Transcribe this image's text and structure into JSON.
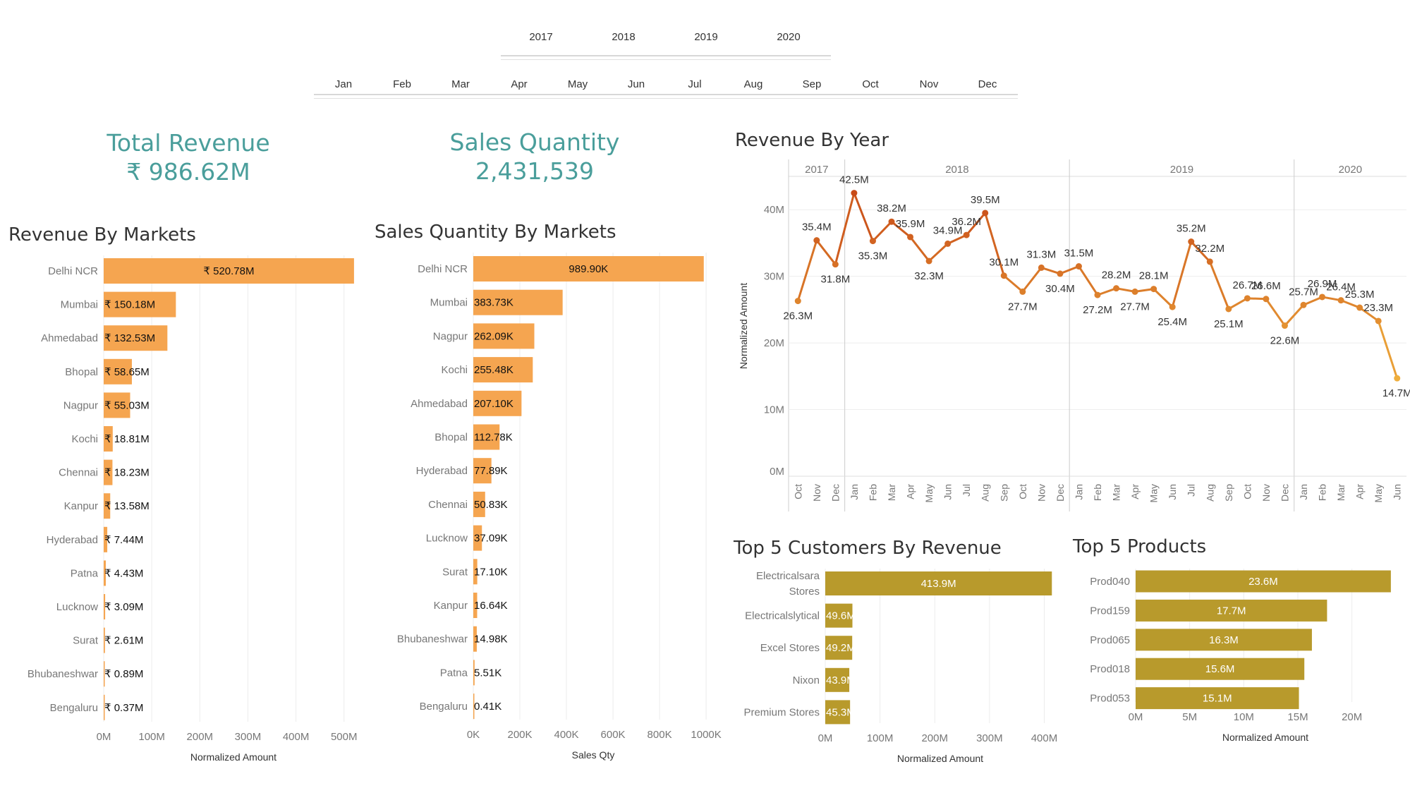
{
  "filters": {
    "years": [
      "2017",
      "2018",
      "2019",
      "2020"
    ],
    "months": [
      "Jan",
      "Feb",
      "Mar",
      "Apr",
      "May",
      "Jun",
      "Jul",
      "Aug",
      "Sep",
      "Oct",
      "Nov",
      "Dec"
    ]
  },
  "kpis": {
    "total_revenue": {
      "label": "Total Revenue",
      "value": "₹ 986.62M"
    },
    "sales_quantity": {
      "label": "Sales Quantity",
      "value": "2,431,539"
    }
  },
  "colors": {
    "market_bar": "#f5a550",
    "gold_bar": "#b89a2c",
    "kpi": "#4a9e9b",
    "line_dark": "#c9511e",
    "line_light": "#f0b13e"
  },
  "chart_data": [
    {
      "id": "revenue_by_markets",
      "type": "bar",
      "orientation": "horizontal",
      "title": "Revenue By Markets",
      "xlabel": "Normalized Amount",
      "categories": [
        "Delhi NCR",
        "Mumbai",
        "Ahmedabad",
        "Bhopal",
        "Nagpur",
        "Kochi",
        "Chennai",
        "Kanpur",
        "Hyderabad",
        "Patna",
        "Lucknow",
        "Surat",
        "Bhubaneshwar",
        "Bengaluru"
      ],
      "values": [
        520.78,
        150.18,
        132.53,
        58.65,
        55.03,
        18.81,
        18.23,
        13.58,
        7.44,
        4.43,
        3.09,
        2.61,
        0.89,
        0.37
      ],
      "data_labels": [
        "₹ 520.78M",
        "₹ 150.18M",
        "₹ 132.53M",
        "₹ 58.65M",
        "₹ 55.03M",
        "₹ 18.81M",
        "₹ 18.23M",
        "₹ 13.58M",
        "₹ 7.44M",
        "₹ 4.43M",
        "₹ 3.09M",
        "₹ 2.61M",
        "₹ 0.89M",
        "₹ 0.37M"
      ],
      "xticks": [
        "0M",
        "100M",
        "200M",
        "300M",
        "400M",
        "500M"
      ],
      "xlim": [
        0,
        540
      ]
    },
    {
      "id": "sales_qty_by_markets",
      "type": "bar",
      "orientation": "horizontal",
      "title": "Sales Quantity By Markets",
      "xlabel": "Sales Qty",
      "categories": [
        "Delhi NCR",
        "Mumbai",
        "Nagpur",
        "Kochi",
        "Ahmedabad",
        "Bhopal",
        "Hyderabad",
        "Chennai",
        "Lucknow",
        "Surat",
        "Kanpur",
        "Bhubaneshwar",
        "Patna",
        "Bengaluru"
      ],
      "values": [
        989.9,
        383.73,
        262.09,
        255.48,
        207.1,
        112.78,
        77.89,
        50.83,
        37.09,
        17.1,
        16.64,
        14.98,
        5.51,
        0.41
      ],
      "data_labels": [
        "989.90K",
        "383.73K",
        "262.09K",
        "255.48K",
        "207.10K",
        "112.78K",
        "77.89K",
        "50.83K",
        "37.09K",
        "17.10K",
        "16.64K",
        "14.98K",
        "5.51K",
        "0.41K"
      ],
      "xticks": [
        "0K",
        "200K",
        "400K",
        "600K",
        "800K",
        "1000K"
      ],
      "xlim": [
        0,
        1030
      ]
    },
    {
      "id": "revenue_by_year",
      "type": "line",
      "title": "Revenue By Year",
      "ylabel": "Normalized Amount",
      "yticks": [
        "0M",
        "10M",
        "20M",
        "30M",
        "40M"
      ],
      "ylim": [
        0,
        45
      ],
      "groups": [
        {
          "year": "2017",
          "months": [
            "Oct",
            "Nov",
            "Dec"
          ],
          "values": [
            26.3,
            35.4,
            31.8
          ],
          "labels": [
            "26.3M",
            "35.4M",
            "31.8M"
          ]
        },
        {
          "year": "2018",
          "months": [
            "Jan",
            "Feb",
            "Mar",
            "Apr",
            "May",
            "Jun",
            "Jul",
            "Aug",
            "Sep",
            "Oct",
            "Nov",
            "Dec"
          ],
          "values": [
            42.5,
            35.3,
            38.2,
            35.9,
            32.3,
            34.9,
            36.2,
            39.5,
            30.1,
            27.7,
            31.3,
            30.4
          ],
          "labels": [
            "42.5M",
            "35.3M",
            "38.2M",
            "35.9M",
            "32.3M",
            "34.9M",
            "36.2M",
            "39.5M",
            "30.1M",
            "27.7M",
            "31.3M",
            "30.4M"
          ]
        },
        {
          "year": "2019",
          "months": [
            "Jan",
            "Feb",
            "Mar",
            "Apr",
            "May",
            "Jun",
            "Jul",
            "Aug",
            "Sep",
            "Oct",
            "Nov",
            "Dec"
          ],
          "values": [
            31.5,
            27.2,
            28.2,
            27.7,
            28.1,
            25.4,
            35.2,
            32.2,
            25.1,
            26.7,
            26.6,
            22.6
          ],
          "labels": [
            "31.5M",
            "27.2M",
            "28.2M",
            "27.7M",
            "28.1M",
            "25.4M",
            "35.2M",
            "32.2M",
            "25.1M",
            "26.7M",
            "26.6M",
            "22.6M"
          ]
        },
        {
          "year": "2020",
          "months": [
            "Jan",
            "Feb",
            "Mar",
            "Apr",
            "May",
            "Jun"
          ],
          "values": [
            25.7,
            26.9,
            26.4,
            25.3,
            23.3,
            14.7
          ],
          "labels": [
            "25.7M",
            "26.9M",
            "26.4M",
            "25.3M",
            "23.3M",
            "14.7M"
          ]
        }
      ]
    },
    {
      "id": "top5_customers",
      "type": "bar",
      "orientation": "horizontal",
      "title": "Top 5 Customers By Revenue",
      "xlabel": "Normalized Amount",
      "categories": [
        [
          "Electricalsara",
          "Stores"
        ],
        [
          "Electricalslytical"
        ],
        [
          "Excel Stores"
        ],
        [
          "Nixon"
        ],
        [
          "Premium Stores"
        ]
      ],
      "values": [
        413.9,
        49.6,
        49.2,
        43.9,
        45.3
      ],
      "data_labels": [
        "413.9M",
        "49.6M",
        "49.2M",
        "43.9M",
        "45.3M"
      ],
      "xticks": [
        "0M",
        "100M",
        "200M",
        "300M",
        "400M"
      ],
      "xlim": [
        0,
        420
      ]
    },
    {
      "id": "top5_products",
      "type": "bar",
      "orientation": "horizontal",
      "title": "Top 5 Products",
      "xlabel": "Normalized Amount",
      "categories": [
        "Prod040",
        "Prod159",
        "Prod065",
        "Prod018",
        "Prod053"
      ],
      "values": [
        23.6,
        17.7,
        16.3,
        15.6,
        15.1
      ],
      "data_labels": [
        "23.6M",
        "17.7M",
        "16.3M",
        "15.6M",
        "15.1M"
      ],
      "xticks": [
        "0M",
        "5M",
        "10M",
        "15M",
        "20M"
      ],
      "xlim": [
        0,
        24
      ]
    }
  ]
}
